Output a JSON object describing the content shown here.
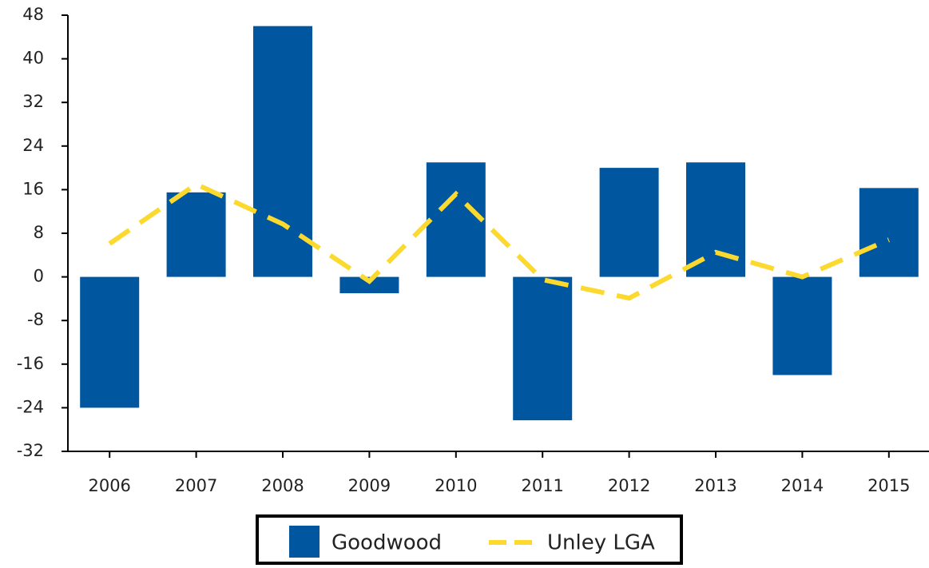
{
  "chart_data": {
    "type": "bar",
    "categories": [
      "2006",
      "2007",
      "2008",
      "2009",
      "2010",
      "2011",
      "2012",
      "2013",
      "2014",
      "2015"
    ],
    "series": [
      {
        "name": "Goodwood",
        "type": "bar",
        "color": "#0057a0",
        "values": [
          -24,
          15.5,
          46,
          -3,
          21,
          -26.3,
          20,
          21,
          -18,
          16.3
        ]
      },
      {
        "name": "Unley LGA",
        "type": "line",
        "color": "#fcd92e",
        "dashed": true,
        "values": [
          6.1,
          17,
          9.7,
          -0.8,
          15.2,
          -0.5,
          -3.9,
          4.5,
          0,
          6.8
        ]
      }
    ],
    "ylim": [
      -32,
      48
    ],
    "yticks": [
      -32,
      -24,
      -16,
      -8,
      0,
      8,
      16,
      24,
      32,
      40,
      48
    ],
    "grid": false,
    "legend": "bottom"
  }
}
